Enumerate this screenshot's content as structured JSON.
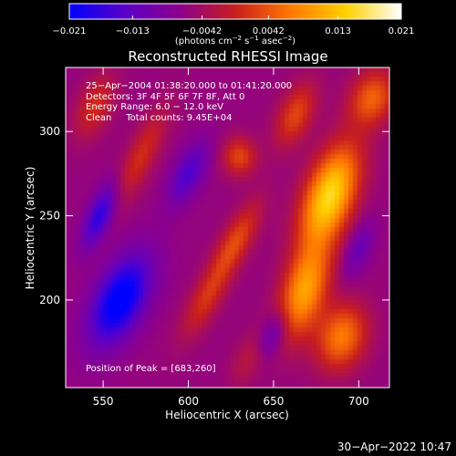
{
  "chart_data": {
    "type": "heatmap",
    "title": "Reconstructed RHESSI Image",
    "xlabel": "Heliocentric X (arcsec)",
    "ylabel": "Heliocentric Y (arcsec)",
    "xlim": [
      528,
      718
    ],
    "ylim": [
      148,
      338
    ],
    "xticks": [
      550,
      600,
      650,
      700
    ],
    "yticks": [
      200,
      250,
      300
    ],
    "colorbar": {
      "ticks": [
        -0.021,
        -0.013,
        -0.0042,
        0.0042,
        0.013,
        0.021
      ],
      "tick_labels": [
        "−0.021",
        "−0.013",
        "−0.0042",
        "0.0042",
        "0.013",
        "0.021"
      ],
      "unit_text": "(photons cm",
      "unit_sup1": "−2",
      "unit_mid": " s",
      "unit_sup2": "−1",
      "unit_mid2": " asec",
      "unit_sup3": "−2",
      "unit_end": ")",
      "range": [
        -0.021,
        0.021
      ],
      "colormap": [
        "#0000ff",
        "#5a00c8",
        "#8c008c",
        "#c81e1e",
        "#ff7800",
        "#ffd000",
        "#ffffff"
      ]
    },
    "annotations": {
      "time": "25−Apr−2004 01:38:20.000 to 01:41:20.000",
      "detectors": "Detectors: 3F 4F 5F 6F 7F 8F, Att 0",
      "energy": "Energy Range: 6.0 − 12.0 keV",
      "clean": "Clean     Total counts: 9.45E+04",
      "peak": "Position of Peak = [683,260]"
    },
    "peak_position": [
      683,
      260
    ],
    "blobs": [
      {
        "x": 683,
        "y": 262,
        "sx": 10,
        "sy": 22,
        "theta": 0.35,
        "amp": 0.021
      },
      {
        "x": 668,
        "y": 205,
        "sx": 9,
        "sy": 20,
        "theta": 0.3,
        "amp": 0.016
      },
      {
        "x": 690,
        "y": 178,
        "sx": 10,
        "sy": 14,
        "theta": 0.3,
        "amp": 0.013
      },
      {
        "x": 708,
        "y": 320,
        "sx": 9,
        "sy": 12,
        "theta": 0.4,
        "amp": 0.011
      },
      {
        "x": 663,
        "y": 310,
        "sx": 7,
        "sy": 14,
        "theta": 0.4,
        "amp": 0.009
      },
      {
        "x": 630,
        "y": 285,
        "sx": 7,
        "sy": 8,
        "theta": 0.0,
        "amp": 0.009
      },
      {
        "x": 628,
        "y": 235,
        "sx": 6,
        "sy": 18,
        "theta": 0.5,
        "amp": 0.009
      },
      {
        "x": 610,
        "y": 200,
        "sx": 6,
        "sy": 18,
        "theta": 0.5,
        "amp": 0.007
      },
      {
        "x": 572,
        "y": 285,
        "sx": 6,
        "sy": 22,
        "theta": 0.45,
        "amp": 0.007
      },
      {
        "x": 545,
        "y": 315,
        "sx": 7,
        "sy": 14,
        "theta": 0.4,
        "amp": 0.007
      },
      {
        "x": 635,
        "y": 165,
        "sx": 6,
        "sy": 12,
        "theta": 0.4,
        "amp": 0.004
      },
      {
        "x": 560,
        "y": 200,
        "sx": 10,
        "sy": 20,
        "theta": 0.45,
        "amp": -0.017
      },
      {
        "x": 548,
        "y": 250,
        "sx": 5,
        "sy": 14,
        "theta": 0.4,
        "amp": -0.012
      },
      {
        "x": 600,
        "y": 275,
        "sx": 6,
        "sy": 14,
        "theta": 0.45,
        "amp": -0.009
      },
      {
        "x": 650,
        "y": 180,
        "sx": 5,
        "sy": 10,
        "theta": 0.4,
        "amp": -0.007
      },
      {
        "x": 700,
        "y": 230,
        "sx": 5,
        "sy": 12,
        "theta": 0.35,
        "amp": -0.006
      }
    ]
  },
  "timestamp": "30−Apr−2022 10:47"
}
